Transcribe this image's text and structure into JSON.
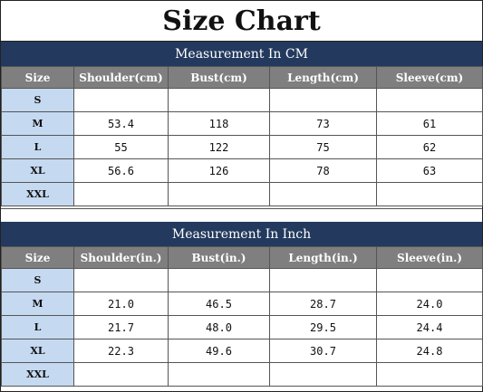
{
  "title": "Size Chart",
  "cm": {
    "section_title": "Measurement In CM",
    "headers": [
      "Size",
      "Shoulder(cm)",
      "Bust(cm)",
      "Length(cm)",
      "Sleeve(cm)"
    ],
    "rows": [
      [
        "S",
        "",
        "",
        "",
        ""
      ],
      [
        "M",
        "53.4",
        "118",
        "73",
        "61"
      ],
      [
        "L",
        "55",
        "122",
        "75",
        "62"
      ],
      [
        "XL",
        "56.6",
        "126",
        "78",
        "63"
      ],
      [
        "XXL",
        "",
        "",
        "",
        ""
      ]
    ]
  },
  "inch": {
    "section_title": "Measurement In Inch",
    "headers": [
      "Size",
      "Shoulder(in.)",
      "Bust(in.)",
      "Length(in.)",
      "Sleeve(in.)"
    ],
    "rows": [
      [
        "S",
        "",
        "",
        "",
        ""
      ],
      [
        "M",
        "21.0",
        "46.5",
        "28.7",
        "24.0"
      ],
      [
        "L",
        "21.7",
        "48.0",
        "29.5",
        "24.4"
      ],
      [
        "XL",
        "22.3",
        "49.6",
        "30.7",
        "24.8"
      ],
      [
        "XXL",
        "",
        "",
        "",
        ""
      ]
    ]
  },
  "colors": {
    "section_bg": "#233a5e",
    "header_bg": "#7f7f7f",
    "size_cell_bg": "#c5d9f1"
  }
}
